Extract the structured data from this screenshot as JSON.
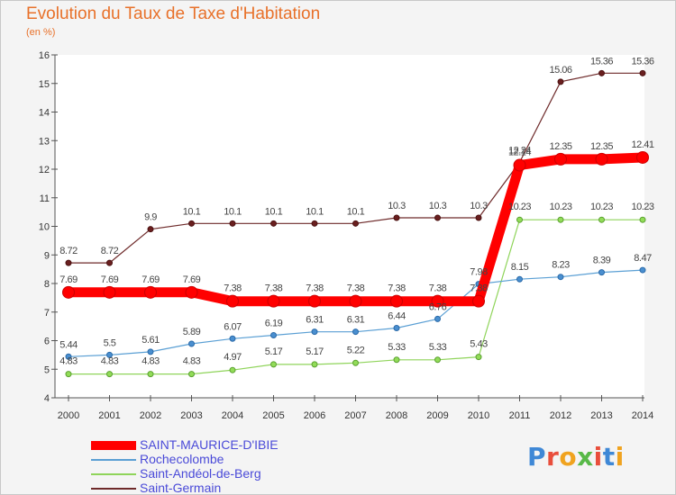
{
  "title": "Evolution du Taux de Taxe d'Habitation",
  "subtitle": "(en %)",
  "brand": {
    "text": "Proxiti",
    "letter_colors": [
      "#3f88d6",
      "#e94e3c",
      "#f0a31f",
      "#58b948",
      "#e94e3c",
      "#3f88d6",
      "#f0a31f"
    ]
  },
  "chart_data": {
    "type": "line",
    "x": [
      "2000",
      "2001",
      "2002",
      "2003",
      "2004",
      "2005",
      "2006",
      "2007",
      "2008",
      "2009",
      "2010",
      "2011",
      "2012",
      "2013",
      "2014"
    ],
    "ylim": [
      4,
      16
    ],
    "yticks": [
      "4",
      "5",
      "6",
      "7",
      "8",
      "9",
      "10",
      "11",
      "12",
      "13",
      "14",
      "15",
      "16"
    ],
    "grid": false,
    "legend_position": "bottom-left",
    "series": [
      {
        "name": "SAINT-MAURICE-D'IBIE",
        "color": "#ff0000",
        "values": [
          7.69,
          7.69,
          7.69,
          7.69,
          7.38,
          7.38,
          7.38,
          7.38,
          7.38,
          7.38,
          7.38,
          12.14,
          12.35,
          12.35,
          12.41
        ]
      },
      {
        "name": "Rochecolombe",
        "color": "#5a9fd4",
        "values": [
          5.44,
          5.5,
          5.61,
          5.89,
          6.07,
          6.19,
          6.31,
          6.31,
          6.44,
          6.76,
          7.98,
          8.15,
          8.23,
          8.39,
          8.47
        ]
      },
      {
        "name": "Saint-Andéol-de-Berg",
        "color": "#8fd45a",
        "values": [
          4.83,
          4.83,
          4.83,
          4.83,
          4.97,
          5.17,
          5.17,
          5.22,
          5.33,
          5.33,
          5.43,
          10.23,
          10.23,
          10.23,
          10.23
        ]
      },
      {
        "name": "Saint-Germain",
        "color": "#6e2a2a",
        "values": [
          8.72,
          8.72,
          9.9,
          10.1,
          10.1,
          10.1,
          10.1,
          10.1,
          10.3,
          10.3,
          10.3,
          12.24,
          15.06,
          15.36,
          15.36
        ]
      }
    ],
    "value_labels": [
      [
        "7.69",
        "7.69",
        "7.69",
        "7.69",
        "7.38",
        "7.38",
        "7.38",
        "7.38",
        "7.38",
        "7.38",
        "7.38",
        "12.14",
        "12.35",
        "12.35",
        "12.41"
      ],
      [
        "5.44",
        "5.5",
        "5.61",
        "5.89",
        "6.07",
        "6.19",
        "6.31",
        "6.31",
        "6.44",
        "6.76",
        "7.98",
        "8.15",
        "8.23",
        "8.39",
        "8.47"
      ],
      [
        "4.83",
        "4.83",
        "4.83",
        "4.83",
        "4.97",
        "5.17",
        "5.17",
        "5.22",
        "5.33",
        "5.33",
        "5.43",
        "10.23",
        "10.23",
        "10.23",
        "10.23"
      ],
      [
        "8.72",
        "8.72",
        "9.9",
        "10.1",
        "10.1",
        "10.1",
        "10.1",
        "10.1",
        "10.3",
        "10.3",
        "10.3",
        "12.24",
        "15.06",
        "15.36",
        "15.36"
      ]
    ]
  }
}
